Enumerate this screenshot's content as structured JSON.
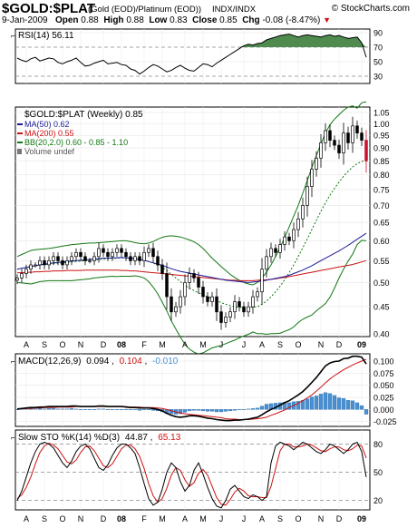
{
  "header": {
    "ticker": "$GOLD:$PLAT",
    "description": "(Gold (EOD)/Platinum (EOD))",
    "exchange": "INDX/INDX",
    "copyright": "© StockCharts.com",
    "date": "9-Jan-2009",
    "open_label": "Open",
    "open": "0.88",
    "high_label": "High",
    "high": "0.88",
    "low_label": "Low",
    "low": "0.83",
    "close_label": "Close",
    "close": "0.85",
    "chg_label": "Chg",
    "chg": "-0.08 (-8.47%)"
  },
  "colors": {
    "up_candle": "#ffffff",
    "down_candle": "#000000",
    "last_candle": "#c8102e",
    "ma50": "#1a1a99",
    "ma200": "#cc1111",
    "bollinger": "#117711",
    "rsi_fill": "#4f8a4f",
    "macd_hist": "#4a8fd0",
    "macd_signal": "#cc1111",
    "sto_d": "#cc1111",
    "chg_down": "#cc1111"
  },
  "chart_data": [
    {
      "type": "line",
      "panel": "RSI",
      "legend": "RSI(14) 56.11",
      "y_ticks": [
        "90",
        "70",
        "50",
        "30"
      ],
      "ylim": [
        20,
        95
      ],
      "reference_lines": [
        70,
        30
      ],
      "x_weeks": 78,
      "values": [
        55,
        52,
        50,
        54,
        56,
        51,
        53,
        55,
        54,
        49,
        47,
        50,
        52,
        55,
        49,
        44,
        45,
        48,
        50,
        52,
        47,
        48,
        49,
        46,
        45,
        40,
        38,
        33,
        37,
        42,
        46,
        44,
        40,
        36,
        38,
        42,
        45,
        41,
        38,
        37,
        42,
        47,
        46,
        43,
        48,
        52,
        56,
        60,
        64,
        68,
        72,
        74,
        73,
        75,
        76,
        80,
        82,
        84,
        86,
        87,
        88,
        86,
        84,
        86,
        87,
        86,
        85,
        84,
        86,
        87,
        85,
        86,
        84,
        82,
        83,
        84,
        76,
        56.11
      ]
    },
    {
      "type": "candlestick",
      "panel": "Price",
      "legend": "$GOLD:$PLAT (Weekly) 0.85",
      "series_legends": [
        {
          "name": "MA(50) 0.62",
          "color": "#1a1a99"
        },
        {
          "name": "MA(200) 0.55",
          "color": "#cc1111"
        },
        {
          "name": "BB(20,2.0) 0.60 - 0.85 - 1.10",
          "color": "#117711"
        },
        {
          "name": "Volume undef",
          "color": "#555555"
        }
      ],
      "y_ticks": [
        "1.05",
        "1.00",
        "0.95",
        "0.90",
        "0.85",
        "0.80",
        "0.75",
        "0.70",
        "0.65",
        "0.60",
        "0.55",
        "0.50",
        "0.45",
        "0.40"
      ],
      "ylim": [
        0.395,
        1.075
      ],
      "y_scale": "log",
      "x_weeks": 78,
      "close": [
        0.51,
        0.52,
        0.53,
        0.54,
        0.54,
        0.55,
        0.54,
        0.55,
        0.56,
        0.55,
        0.54,
        0.55,
        0.56,
        0.57,
        0.56,
        0.55,
        0.55,
        0.56,
        0.58,
        0.57,
        0.56,
        0.57,
        0.58,
        0.57,
        0.56,
        0.55,
        0.56,
        0.55,
        0.57,
        0.58,
        0.56,
        0.54,
        0.52,
        0.47,
        0.44,
        0.45,
        0.47,
        0.5,
        0.52,
        0.51,
        0.49,
        0.47,
        0.46,
        0.47,
        0.44,
        0.42,
        0.43,
        0.44,
        0.46,
        0.45,
        0.44,
        0.45,
        0.47,
        0.48,
        0.53,
        0.56,
        0.58,
        0.57,
        0.59,
        0.61,
        0.6,
        0.63,
        0.66,
        0.7,
        0.76,
        0.82,
        0.86,
        0.92,
        0.97,
        0.93,
        0.91,
        0.88,
        0.96,
        0.92,
        0.99,
        0.96,
        0.93,
        0.85
      ],
      "ma50": [
        0.53,
        0.532,
        0.534,
        0.536,
        0.538,
        0.54,
        0.542,
        0.543,
        0.545,
        0.546,
        0.547,
        0.548,
        0.549,
        0.55,
        0.551,
        0.552,
        0.553,
        0.554,
        0.555,
        0.556,
        0.556,
        0.557,
        0.557,
        0.558,
        0.557,
        0.556,
        0.555,
        0.553,
        0.551,
        0.548,
        0.545,
        0.542,
        0.539,
        0.535,
        0.531,
        0.528,
        0.525,
        0.523,
        0.521,
        0.519,
        0.517,
        0.515,
        0.513,
        0.511,
        0.509,
        0.507,
        0.505,
        0.504,
        0.503,
        0.502,
        0.501,
        0.5,
        0.501,
        0.502,
        0.503,
        0.505,
        0.507,
        0.509,
        0.511,
        0.513,
        0.516,
        0.52,
        0.524,
        0.528,
        0.533,
        0.538,
        0.544,
        0.55,
        0.556,
        0.562,
        0.568,
        0.574,
        0.581,
        0.588,
        0.596,
        0.604,
        0.612,
        0.62
      ],
      "ma200": [
        0.522,
        0.522,
        0.523,
        0.523,
        0.524,
        0.524,
        0.525,
        0.525,
        0.526,
        0.526,
        0.526,
        0.527,
        0.527,
        0.527,
        0.527,
        0.528,
        0.528,
        0.528,
        0.528,
        0.528,
        0.528,
        0.528,
        0.528,
        0.527,
        0.527,
        0.526,
        0.526,
        0.525,
        0.524,
        0.523,
        0.522,
        0.521,
        0.52,
        0.519,
        0.518,
        0.517,
        0.516,
        0.515,
        0.514,
        0.513,
        0.512,
        0.511,
        0.51,
        0.509,
        0.508,
        0.507,
        0.506,
        0.505,
        0.505,
        0.504,
        0.504,
        0.504,
        0.504,
        0.505,
        0.505,
        0.506,
        0.507,
        0.508,
        0.51,
        0.511,
        0.513,
        0.515,
        0.517,
        0.519,
        0.521,
        0.523,
        0.525,
        0.527,
        0.529,
        0.531,
        0.533,
        0.535,
        0.537,
        0.539,
        0.541,
        0.544,
        0.547,
        0.55
      ],
      "bb_upper": [
        0.56,
        0.565,
        0.57,
        0.575,
        0.577,
        0.578,
        0.579,
        0.58,
        0.582,
        0.584,
        0.586,
        0.588,
        0.59,
        0.591,
        0.592,
        0.593,
        0.594,
        0.594,
        0.595,
        0.596,
        0.597,
        0.598,
        0.599,
        0.6,
        0.6,
        0.598,
        0.595,
        0.593,
        0.592,
        0.594,
        0.598,
        0.604,
        0.609,
        0.612,
        0.613,
        0.612,
        0.61,
        0.606,
        0.602,
        0.597,
        0.59,
        0.58,
        0.568,
        0.556,
        0.546,
        0.536,
        0.527,
        0.518,
        0.511,
        0.505,
        0.5,
        0.497,
        0.495,
        0.5,
        0.51,
        0.523,
        0.54,
        0.56,
        0.583,
        0.608,
        0.637,
        0.668,
        0.7,
        0.738,
        0.78,
        0.826,
        0.87,
        0.915,
        0.96,
        0.995,
        1.02,
        1.04,
        1.06,
        1.075,
        1.08,
        1.07,
        1.095,
        1.1
      ],
      "bb_middle": [
        0.53,
        0.532,
        0.534,
        0.536,
        0.538,
        0.54,
        0.541,
        0.542,
        0.543,
        0.544,
        0.545,
        0.546,
        0.547,
        0.548,
        0.549,
        0.55,
        0.551,
        0.552,
        0.553,
        0.554,
        0.555,
        0.556,
        0.556,
        0.557,
        0.557,
        0.556,
        0.555,
        0.553,
        0.551,
        0.548,
        0.544,
        0.54,
        0.534,
        0.527,
        0.518,
        0.51,
        0.502,
        0.494,
        0.488,
        0.483,
        0.478,
        0.474,
        0.47,
        0.466,
        0.462,
        0.458,
        0.455,
        0.452,
        0.45,
        0.449,
        0.448,
        0.448,
        0.449,
        0.45,
        0.455,
        0.461,
        0.47,
        0.48,
        0.492,
        0.506,
        0.522,
        0.54,
        0.56,
        0.582,
        0.605,
        0.63,
        0.656,
        0.682,
        0.708,
        0.732,
        0.754,
        0.775,
        0.795,
        0.812,
        0.828,
        0.84,
        0.848,
        0.85
      ],
      "bb_lower": [
        0.5,
        0.499,
        0.498,
        0.497,
        0.499,
        0.502,
        0.503,
        0.504,
        0.504,
        0.504,
        0.504,
        0.504,
        0.504,
        0.505,
        0.506,
        0.507,
        0.508,
        0.51,
        0.511,
        0.512,
        0.513,
        0.514,
        0.513,
        0.514,
        0.514,
        0.514,
        0.515,
        0.513,
        0.51,
        0.502,
        0.49,
        0.476,
        0.459,
        0.442,
        0.423,
        0.408,
        0.394,
        0.382,
        0.374,
        0.369,
        0.366,
        0.368,
        0.372,
        0.376,
        0.378,
        0.38,
        0.383,
        0.386,
        0.389,
        0.393,
        0.396,
        0.399,
        0.403,
        0.4,
        0.4,
        0.399,
        0.4,
        0.4,
        0.401,
        0.404,
        0.407,
        0.412,
        0.42,
        0.426,
        0.43,
        0.434,
        0.442,
        0.449,
        0.456,
        0.469,
        0.488,
        0.51,
        0.53,
        0.549,
        0.566,
        0.59,
        0.601,
        0.6
      ]
    },
    {
      "type": "line",
      "panel": "MACD",
      "legend_prefix": "MACD(12,26,9)",
      "legend_macd": "0.094",
      "legend_signal": "0.104",
      "legend_hist": "-0.010",
      "y_ticks": [
        "0.100",
        "0.075",
        "0.050",
        "0.025",
        "0.000",
        "-0.025"
      ],
      "ylim": [
        -0.035,
        0.115
      ],
      "x_weeks": 78,
      "macd": [
        0.001,
        0.002,
        0.003,
        0.004,
        0.004,
        0.005,
        0.005,
        0.006,
        0.006,
        0.006,
        0.006,
        0.006,
        0.007,
        0.007,
        0.006,
        0.006,
        0.006,
        0.006,
        0.007,
        0.007,
        0.006,
        0.006,
        0.006,
        0.006,
        0.005,
        0.004,
        0.004,
        0.003,
        0.003,
        0.003,
        0.002,
        0.0,
        -0.003,
        -0.008,
        -0.012,
        -0.015,
        -0.016,
        -0.015,
        -0.013,
        -0.013,
        -0.014,
        -0.016,
        -0.018,
        -0.019,
        -0.021,
        -0.022,
        -0.023,
        -0.023,
        -0.022,
        -0.022,
        -0.021,
        -0.02,
        -0.018,
        -0.016,
        -0.011,
        -0.005,
        0.0,
        0.004,
        0.009,
        0.014,
        0.018,
        0.024,
        0.03,
        0.037,
        0.046,
        0.056,
        0.066,
        0.078,
        0.09,
        0.096,
        0.099,
        0.1,
        0.105,
        0.106,
        0.11,
        0.11,
        0.108,
        0.094
      ],
      "signal": [
        0.001,
        0.001,
        0.002,
        0.002,
        0.003,
        0.003,
        0.004,
        0.004,
        0.004,
        0.005,
        0.005,
        0.005,
        0.005,
        0.006,
        0.006,
        0.006,
        0.006,
        0.006,
        0.006,
        0.006,
        0.006,
        0.006,
        0.006,
        0.006,
        0.006,
        0.005,
        0.005,
        0.005,
        0.004,
        0.004,
        0.004,
        0.003,
        0.002,
        0.0,
        -0.003,
        -0.005,
        -0.007,
        -0.009,
        -0.01,
        -0.011,
        -0.012,
        -0.013,
        -0.014,
        -0.015,
        -0.016,
        -0.017,
        -0.019,
        -0.02,
        -0.02,
        -0.021,
        -0.021,
        -0.021,
        -0.02,
        -0.019,
        -0.018,
        -0.016,
        -0.012,
        -0.009,
        -0.005,
        -0.001,
        0.004,
        0.008,
        0.013,
        0.018,
        0.024,
        0.03,
        0.038,
        0.046,
        0.055,
        0.063,
        0.07,
        0.076,
        0.082,
        0.087,
        0.092,
        0.096,
        0.1,
        0.104
      ],
      "histogram": [
        0.0,
        0.001,
        0.001,
        0.002,
        0.001,
        0.002,
        0.001,
        0.002,
        0.002,
        0.001,
        0.001,
        0.001,
        0.002,
        0.001,
        0.0,
        0.0,
        0.0,
        0.0,
        0.001,
        0.001,
        0.0,
        0.0,
        0.0,
        0.0,
        -0.001,
        -0.001,
        -0.001,
        -0.002,
        -0.001,
        -0.001,
        -0.002,
        -0.003,
        -0.005,
        -0.008,
        -0.009,
        -0.01,
        -0.009,
        -0.006,
        -0.003,
        -0.002,
        -0.002,
        -0.003,
        -0.004,
        -0.004,
        -0.005,
        -0.005,
        -0.004,
        -0.003,
        -0.002,
        -0.001,
        0.0,
        0.001,
        0.002,
        0.003,
        0.007,
        0.011,
        0.012,
        0.013,
        0.014,
        0.015,
        0.014,
        0.016,
        0.017,
        0.019,
        0.022,
        0.026,
        0.028,
        0.032,
        0.035,
        0.033,
        0.029,
        0.024,
        0.023,
        0.019,
        0.018,
        0.014,
        0.008,
        -0.01
      ]
    },
    {
      "type": "line",
      "panel": "Slow STO",
      "legend_prefix": "Slow STO %K(14) %D(3)",
      "legend_k": "44.87",
      "legend_d": "65.13",
      "y_ticks": [
        "80",
        "50",
        "20"
      ],
      "ylim": [
        10,
        95
      ],
      "reference_lines": [
        80,
        50,
        20
      ],
      "x_weeks": 78,
      "k": [
        20,
        30,
        45,
        60,
        72,
        80,
        82,
        80,
        76,
        68,
        60,
        55,
        62,
        72,
        78,
        80,
        75,
        65,
        55,
        52,
        58,
        68,
        76,
        80,
        80,
        76,
        70,
        55,
        38,
        22,
        15,
        18,
        32,
        50,
        60,
        55,
        40,
        30,
        36,
        52,
        60,
        48,
        34,
        22,
        14,
        12,
        20,
        32,
        36,
        30,
        24,
        22,
        26,
        24,
        20,
        24,
        60,
        78,
        82,
        80,
        78,
        74,
        78,
        82,
        80,
        76,
        72,
        70,
        74,
        80,
        78,
        74,
        70,
        74,
        80,
        82,
        72,
        44.87
      ],
      "d": [
        22,
        26,
        34,
        45,
        59,
        71,
        78,
        81,
        79,
        75,
        68,
        61,
        59,
        63,
        71,
        77,
        78,
        73,
        65,
        57,
        55,
        59,
        67,
        75,
        79,
        79,
        75,
        67,
        54,
        38,
        25,
        18,
        22,
        33,
        47,
        55,
        52,
        42,
        35,
        39,
        49,
        53,
        47,
        35,
        23,
        16,
        15,
        21,
        29,
        33,
        30,
        25,
        24,
        24,
        23,
        23,
        35,
        54,
        73,
        80,
        80,
        77,
        77,
        78,
        80,
        79,
        76,
        73,
        72,
        75,
        77,
        77,
        74,
        73,
        75,
        79,
        78,
        65.13
      ]
    }
  ],
  "x_axis": {
    "labels": [
      "A",
      "S",
      "O",
      "N",
      "D",
      "08",
      "F",
      "M",
      "A",
      "M",
      "J",
      "J",
      "A",
      "S",
      "O",
      "N",
      "D",
      "09"
    ],
    "bold": [
      "08",
      "09"
    ],
    "week_index": [
      2,
      6,
      10,
      14,
      19,
      23,
      28,
      32,
      37,
      41,
      45,
      50,
      54,
      58,
      62,
      67,
      71,
      76
    ]
  }
}
